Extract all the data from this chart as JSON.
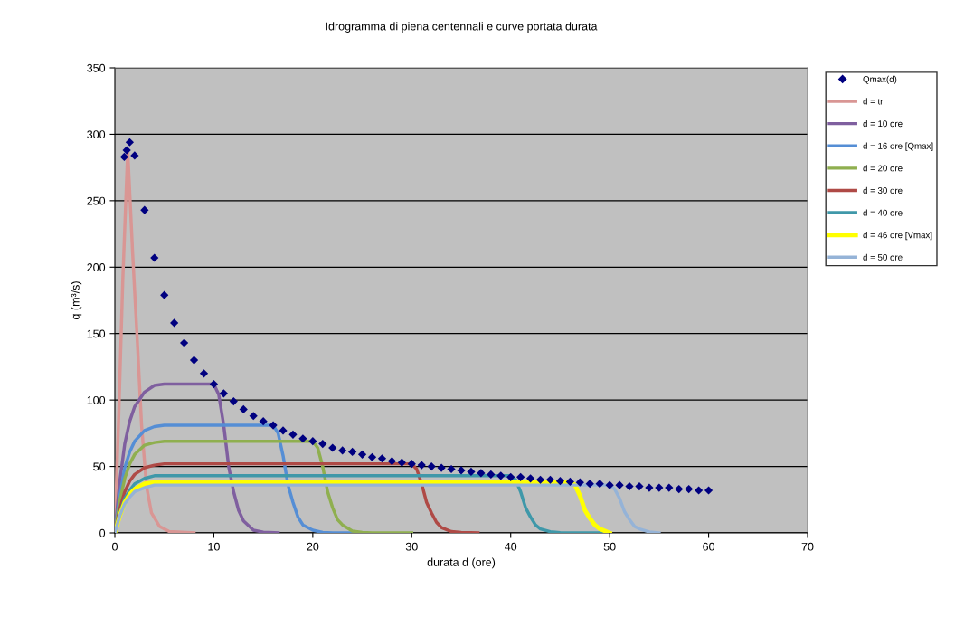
{
  "chart_data": {
    "type": "line",
    "title": "Idrogramma di piena centennali e curve portata durata",
    "xlabel": "durata d (ore)",
    "ylabel": "q (m³/s)",
    "xlim": [
      0,
      70
    ],
    "xticks": [
      0,
      10,
      20,
      30,
      40,
      50,
      60,
      70
    ],
    "ylim": [
      0,
      350
    ],
    "yticks": [
      0,
      50,
      100,
      150,
      200,
      250,
      300,
      350
    ],
    "grid": "y",
    "legend": "right",
    "line_style": "solid",
    "series": [
      {
        "name": "Qmax(d)",
        "type": "scatter",
        "marker": "diamond",
        "color": "#000080",
        "x": [
          0.95,
          1.2,
          1.5,
          2,
          3,
          4,
          5,
          6,
          7,
          8,
          9,
          10,
          11,
          12,
          13,
          14,
          15,
          16,
          17,
          18,
          19,
          20,
          21,
          22,
          23,
          24,
          25,
          26,
          27,
          28,
          29,
          30,
          31,
          32,
          33,
          34,
          35,
          36,
          37,
          38,
          39,
          40,
          41,
          42,
          43,
          44,
          45,
          46,
          47,
          48,
          49,
          50,
          51,
          52,
          53,
          54,
          55,
          56,
          57,
          58,
          59,
          60
        ],
        "values": [
          283,
          288,
          294,
          284,
          243,
          207,
          179,
          158,
          143,
          130,
          120,
          112,
          105,
          99,
          93,
          88,
          84,
          81,
          77,
          74,
          71,
          69,
          67,
          64,
          62,
          61,
          59,
          57,
          56,
          54,
          53,
          52,
          51,
          50,
          49,
          48,
          47,
          46,
          45,
          44,
          43,
          42,
          42,
          41,
          40,
          40,
          39,
          38.5,
          38,
          37,
          37,
          36,
          36,
          35,
          35,
          34,
          34,
          34,
          33,
          33,
          32,
          32
        ]
      },
      {
        "name": "d = tr",
        "color": "#d99694",
        "x": [
          0,
          0.4,
          0.8,
          1.3,
          1.8,
          2.3,
          2.7,
          3.2,
          3.7,
          4.5,
          5.5,
          8
        ],
        "values": [
          0,
          90,
          190,
          288,
          210,
          140,
          81,
          35,
          15,
          5,
          1,
          0
        ]
      },
      {
        "name": "d = 10 ore",
        "color": "#7f5f9f",
        "x": [
          0,
          0.5,
          1,
          1.5,
          2,
          3,
          4,
          5,
          10,
          10.5,
          11,
          11.5,
          12,
          12.5,
          13,
          14,
          15,
          16.5
        ],
        "values": [
          0,
          39,
          67,
          84,
          95,
          106,
          111,
          112,
          112,
          104,
          81,
          50,
          31,
          17,
          9,
          2,
          0.6,
          0
        ]
      },
      {
        "name": "d = 16 ore [Qmax]",
        "color": "#558ed5",
        "x": [
          0,
          0.5,
          1,
          1.5,
          2,
          3,
          4,
          5,
          16,
          16.5,
          17,
          17.5,
          18,
          18.5,
          19,
          20,
          21,
          22,
          25
        ],
        "values": [
          0,
          28,
          49,
          61,
          69,
          77,
          80,
          81,
          81,
          75,
          58,
          36,
          23,
          12,
          6,
          2,
          0.4,
          0,
          0
        ]
      },
      {
        "name": "d = 20 ore",
        "color": "#8faf4f",
        "x": [
          0,
          0.5,
          1,
          1.5,
          2,
          3,
          4,
          5,
          20,
          20.5,
          21,
          21.5,
          22,
          22.5,
          23,
          24,
          25,
          26,
          30
        ],
        "values": [
          0,
          24,
          41,
          52,
          59,
          66,
          68,
          69,
          69,
          64,
          50,
          31,
          19,
          10,
          6,
          1.4,
          0.3,
          0,
          0
        ]
      },
      {
        "name": "d = 30 ore",
        "color": "#af4a46",
        "x": [
          0,
          0.5,
          1,
          1.5,
          2,
          3,
          4,
          5,
          30,
          30.5,
          31,
          31.5,
          32,
          32.5,
          33,
          34,
          35,
          36.7
        ],
        "values": [
          0,
          18,
          31,
          39,
          44,
          49,
          51,
          52,
          52,
          48,
          37,
          23,
          15,
          8,
          4,
          1,
          0.3,
          0
        ]
      },
      {
        "name": "d = 40 ore",
        "color": "#3f98a9",
        "x": [
          0,
          0.5,
          1,
          1.5,
          2,
          3,
          4,
          5,
          40,
          40.5,
          41,
          41.5,
          42,
          42.5,
          43,
          44,
          45,
          47,
          50
        ],
        "values": [
          0,
          15,
          26,
          32,
          37,
          41,
          43,
          43,
          43,
          40,
          31,
          19,
          12,
          6,
          3,
          0.9,
          0.2,
          0,
          0
        ]
      },
      {
        "name": "d = 46 ore [Vmax]",
        "color": "#ffff00",
        "x": [
          0,
          0.5,
          1,
          1.5,
          2,
          3,
          4,
          5,
          46,
          46.5,
          47,
          47.5,
          48,
          48.5,
          49,
          50
        ],
        "values": [
          0,
          13,
          23,
          29,
          33,
          37,
          38,
          38.5,
          38.5,
          36,
          28,
          17,
          11,
          6,
          3,
          0
        ]
      },
      {
        "name": "d = 50 ore",
        "color": "#95b3d7",
        "x": [
          0,
          0.5,
          1,
          1.5,
          2,
          3,
          4,
          5,
          50,
          50.5,
          51,
          51.5,
          52,
          52.5,
          53,
          54,
          55
        ],
        "values": [
          0,
          13,
          22,
          27,
          31,
          34,
          36,
          36,
          36,
          33,
          26,
          16,
          10,
          5,
          3,
          0.7,
          0
        ]
      }
    ]
  }
}
